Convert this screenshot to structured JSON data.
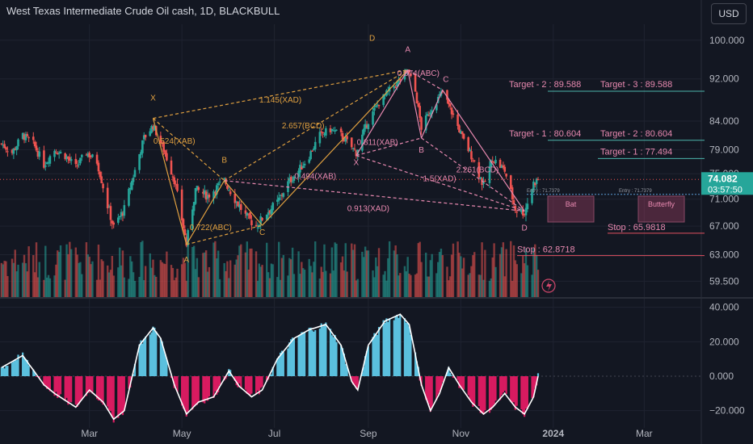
{
  "header": {
    "title": "West Texas Intermediate Crude Oil cash, 1D, BLACKBULL",
    "currency": "USD"
  },
  "colors": {
    "background": "#131722",
    "up": "#26a69a",
    "down": "#ef5350",
    "grid": "#1f2330",
    "harmonic_orange": "#e0a040",
    "harmonic_pink": "#e889b0",
    "target_line": "#4db6ac",
    "stop_line": "#e05060",
    "current_price_bg": "#26a69a",
    "osc_up": "#5bc0de",
    "osc_down": "#d81b60",
    "osc_line": "#ffffff"
  },
  "chart_data": [
    {
      "type": "candlestick",
      "title": "West Texas Intermediate Crude Oil cash, 1D, BLACKBULL",
      "x_ticks": [
        "Mar",
        "May",
        "Jul",
        "Sep",
        "Nov",
        "2024",
        "Mar"
      ],
      "y_ticks": [
        "100.000",
        "92.000",
        "84.000",
        "79.000",
        "75.000",
        "71.000",
        "67.000",
        "63.000",
        "59.500"
      ],
      "ylim": [
        57.5,
        103.5
      ],
      "current_price": "74.082",
      "countdown": "03:57:50",
      "price_path": [
        [
          "2023-01-02",
          80.0
        ],
        [
          "2023-01-09",
          78.5
        ],
        [
          "2023-01-16",
          81.5
        ],
        [
          "2023-01-23",
          80.0
        ],
        [
          "2023-01-30",
          76.5
        ],
        [
          "2023-02-06",
          79.0
        ],
        [
          "2023-02-13",
          78.0
        ],
        [
          "2023-02-20",
          76.0
        ],
        [
          "2023-02-27",
          78.5
        ],
        [
          "2023-03-06",
          77.0
        ],
        [
          "2023-03-13",
          70.0
        ],
        [
          "2023-03-17",
          66.8
        ],
        [
          "2023-03-24",
          69.5
        ],
        [
          "2023-03-31",
          75.5
        ],
        [
          "2023-04-06",
          81.0
        ],
        [
          "2023-04-12",
          83.2
        ],
        [
          "2023-04-19",
          79.0
        ],
        [
          "2023-04-26",
          74.0
        ],
        [
          "2023-05-04",
          64.4
        ],
        [
          "2023-05-10",
          72.5
        ],
        [
          "2023-05-18",
          71.5
        ],
        [
          "2023-05-29",
          73.9
        ],
        [
          "2023-06-05",
          71.0
        ],
        [
          "2023-06-12",
          68.5
        ],
        [
          "2023-06-19",
          67.0
        ],
        [
          "2023-06-26",
          69.0
        ],
        [
          "2023-07-03",
          70.5
        ],
        [
          "2023-07-10",
          73.5
        ],
        [
          "2023-07-17",
          75.5
        ],
        [
          "2023-07-24",
          78.0
        ],
        [
          "2023-07-31",
          81.5
        ],
        [
          "2023-08-07",
          82.5
        ],
        [
          "2023-08-14",
          81.5
        ],
        [
          "2023-08-24",
          78.5
        ],
        [
          "2023-08-31",
          83.5
        ],
        [
          "2023-09-07",
          87.0
        ],
        [
          "2023-09-14",
          89.5
        ],
        [
          "2023-09-21",
          91.5
        ],
        [
          "2023-09-27",
          93.8
        ],
        [
          "2023-10-02",
          89.5
        ],
        [
          "2023-10-06",
          82.8
        ],
        [
          "2023-10-13",
          86.5
        ],
        [
          "2023-10-20",
          89.5
        ],
        [
          "2023-10-27",
          85.0
        ],
        [
          "2023-11-03",
          80.5
        ],
        [
          "2023-11-10",
          77.0
        ],
        [
          "2023-11-16",
          73.0
        ],
        [
          "2023-11-22",
          77.5
        ],
        [
          "2023-11-30",
          75.5
        ],
        [
          "2023-12-07",
          69.5
        ],
        [
          "2023-12-13",
          69.0
        ],
        [
          "2023-12-19",
          73.5
        ],
        [
          "2023-12-22",
          74.1
        ]
      ],
      "volume_note": "volume histogram in lower part of price pane",
      "harmonic_points_left": [
        {
          "label": "X",
          "date": "2023-04-12",
          "price": 84.5
        },
        {
          "label": "A",
          "date": "2023-05-04",
          "price": 64.4
        },
        {
          "label": "B",
          "date": "2023-05-29",
          "price": 73.9
        },
        {
          "label": "C",
          "date": "2023-06-23",
          "price": 67.1
        },
        {
          "label": "D",
          "date": "2023-09-27",
          "price": 93.8
        }
      ],
      "harmonic_points_right": [
        {
          "label": "X",
          "date": "2023-08-24",
          "price": 78.0
        },
        {
          "label": "A",
          "date": "2023-09-27",
          "price": 93.8
        },
        {
          "label": "B",
          "date": "2023-10-06",
          "price": 81.0
        },
        {
          "label": "C",
          "date": "2023-10-20",
          "price": 89.8
        },
        {
          "label": "D",
          "date": "2023-12-13",
          "price": 69.2
        }
      ],
      "ratio_labels": [
        {
          "text": "1.145(XAD)",
          "date": "2023-07-05",
          "price": 87.4,
          "color": "orange"
        },
        {
          "text": "0.524(XAB)",
          "date": "2023-04-26",
          "price": 80.0,
          "color": "orange"
        },
        {
          "text": "2.657(BCD)",
          "date": "2023-07-20",
          "price": 82.7,
          "color": "orange"
        },
        {
          "text": "0.722(ABC)",
          "date": "2023-05-20",
          "price": 66.4,
          "color": "orange"
        },
        {
          "text": "0.874(ABC)",
          "date": "2023-10-04",
          "price": 92.6,
          "color": "pink"
        },
        {
          "text": "0.811(XAB)",
          "date": "2023-09-07",
          "price": 79.8,
          "color": "pink"
        },
        {
          "text": "0.494(XAB)",
          "date": "2023-07-28",
          "price": 74.2,
          "color": "pink"
        },
        {
          "text": "2.261(BCD)",
          "date": "2023-11-12",
          "price": 75.2,
          "color": "pink"
        },
        {
          "text": "1.5(XAD)",
          "date": "2023-10-18",
          "price": 73.8,
          "color": "pink"
        },
        {
          "text": "0.913(XAD)",
          "date": "2023-09-01",
          "price": 69.2,
          "color": "pink"
        }
      ],
      "targets": [
        {
          "text": "Target - 2 : 89.588",
          "value": 89.588,
          "align": "left"
        },
        {
          "text": "Target - 3 : 89.588",
          "value": 89.588,
          "align": "right"
        },
        {
          "text": "Target - 1 : 80.604",
          "value": 80.604,
          "align": "left"
        },
        {
          "text": "Target - 2 : 80.604",
          "value": 80.604,
          "align": "right"
        },
        {
          "text": "Target - 1 : 77.494",
          "value": 77.494,
          "align": "right"
        }
      ],
      "entry_labels": [
        "Entry : 71.7379",
        "Entry : 71.7379"
      ],
      "entry_value": 71.7379,
      "stops": [
        {
          "text": "Stop : 65.9818",
          "value": 65.9818
        },
        {
          "text": "Stop : 62.8718",
          "value": 62.8718
        }
      ],
      "patterns": [
        "Bat",
        "Butterfly"
      ]
    },
    {
      "type": "bar",
      "title": "",
      "y_ticks": [
        "40.000",
        "20.000",
        "0.000",
        "−20.000"
      ],
      "ylim": [
        -30,
        45
      ],
      "oscillator_path": [
        [
          "2023-01-02",
          5
        ],
        [
          "2023-01-16",
          12
        ],
        [
          "2023-01-30",
          -5
        ],
        [
          "2023-02-06",
          -10
        ],
        [
          "2023-02-20",
          -18
        ],
        [
          "2023-03-01",
          -8
        ],
        [
          "2023-03-10",
          -15
        ],
        [
          "2023-03-17",
          -25
        ],
        [
          "2023-03-24",
          -20
        ],
        [
          "2023-04-03",
          18
        ],
        [
          "2023-04-12",
          28
        ],
        [
          "2023-04-17",
          22
        ],
        [
          "2023-04-26",
          -5
        ],
        [
          "2023-05-04",
          -22
        ],
        [
          "2023-05-12",
          -15
        ],
        [
          "2023-05-22",
          -12
        ],
        [
          "2023-06-01",
          3
        ],
        [
          "2023-06-08",
          -6
        ],
        [
          "2023-06-16",
          -12
        ],
        [
          "2023-06-23",
          -8
        ],
        [
          "2023-07-03",
          10
        ],
        [
          "2023-07-14",
          22
        ],
        [
          "2023-07-24",
          27
        ],
        [
          "2023-08-04",
          30
        ],
        [
          "2023-08-14",
          18
        ],
        [
          "2023-08-21",
          -3
        ],
        [
          "2023-08-25",
          -8
        ],
        [
          "2023-09-01",
          18
        ],
        [
          "2023-09-12",
          32
        ],
        [
          "2023-09-22",
          36
        ],
        [
          "2023-09-28",
          30
        ],
        [
          "2023-10-06",
          -5
        ],
        [
          "2023-10-12",
          -20
        ],
        [
          "2023-10-18",
          -10
        ],
        [
          "2023-10-24",
          5
        ],
        [
          "2023-10-31",
          -5
        ],
        [
          "2023-11-08",
          -15
        ],
        [
          "2023-11-16",
          -22
        ],
        [
          "2023-11-22",
          -18
        ],
        [
          "2023-11-30",
          -10
        ],
        [
          "2023-12-07",
          -18
        ],
        [
          "2023-12-13",
          -22
        ],
        [
          "2023-12-19",
          -12
        ],
        [
          "2023-12-22",
          0
        ]
      ]
    }
  ]
}
